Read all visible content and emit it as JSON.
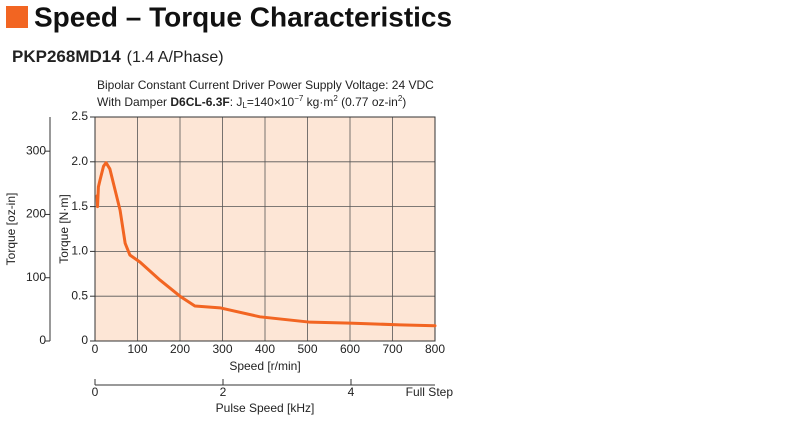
{
  "chart_data": {
    "type": "line",
    "title": "Speed – Torque Characteristics",
    "model": "PKP268MD14",
    "subtitle": "(1.4 A/Phase)",
    "note_line1": "Bipolar Constant Current Driver  Power Supply Voltage: 24 VDC",
    "note_line2": [
      "With Damper ",
      "D6CL-6.3F",
      ": J",
      "L",
      "=140×10",
      "−7",
      " kg·m",
      "2",
      " (0.77 oz-in",
      "2",
      ")"
    ],
    "x_label": "Speed [r/min]",
    "y_label": "Torque [N·m]",
    "y2_label": "Torque [oz-in]",
    "x2_label": "Pulse Speed [kHz]",
    "x2_end_label": "Full Step",
    "x": [
      5,
      6,
      8,
      12,
      20,
      26,
      35,
      47,
      59,
      71,
      82,
      106,
      153,
      200,
      235,
      294,
      388,
      506,
      600,
      718,
      800
    ],
    "series": [
      {
        "name": "PKP268MD14",
        "color": "#f26522",
        "values": [
          1.62,
          1.5,
          1.72,
          1.8,
          1.95,
          1.99,
          1.92,
          1.69,
          1.46,
          1.09,
          0.96,
          0.88,
          0.68,
          0.5,
          0.39,
          0.37,
          0.27,
          0.21,
          0.2,
          0.18,
          0.17
        ]
      }
    ],
    "xlim": [
      0,
      800
    ],
    "xticks": [
      0,
      100,
      200,
      300,
      400,
      500,
      600,
      700,
      800
    ],
    "ylim": [
      0,
      2.5
    ],
    "yticks": [
      0,
      0.5,
      {
        "value": 1,
        "label": "1.0"
      },
      1.5,
      {
        "value": 2,
        "label": "2.0"
      },
      2.5
    ],
    "y2lim": [
      0,
      354
    ],
    "y2ticks": [
      0,
      100,
      200,
      300
    ],
    "x2lim": [
      0,
      5.3125
    ],
    "x2ticks": [
      0,
      2,
      4
    ],
    "grid": true,
    "background": "#fde6d6"
  }
}
